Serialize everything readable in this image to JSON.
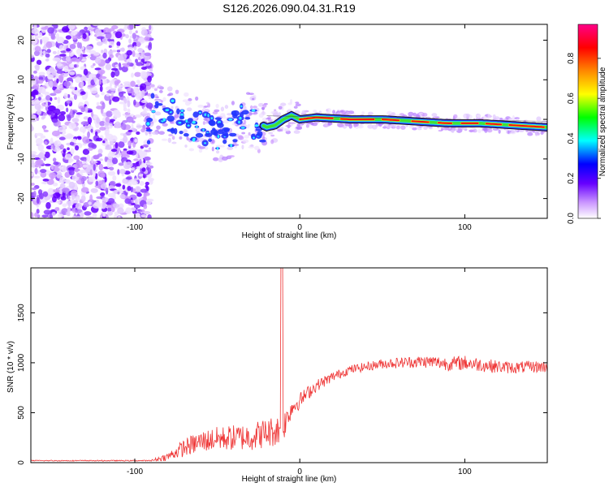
{
  "page_title": "S126.2026.090.04.31.R19",
  "chart_data": [
    {
      "type": "heatmap",
      "title": "S126.2026.090.04.31.R19",
      "xlabel": "Height of straight line (km)",
      "ylabel": "Frequency (Hz)",
      "xlim": [
        -163,
        150
      ],
      "ylim": [
        -25,
        24
      ],
      "xticks": [
        -100,
        0,
        100
      ],
      "yticks": [
        -20,
        -10,
        0,
        10,
        20
      ],
      "xtick_labels": [
        "-100",
        "0",
        "100"
      ],
      "ytick_labels": [
        "-20",
        "-10",
        "0",
        "10",
        "20"
      ],
      "colorbar": {
        "label": "Normalized spectral amplitude",
        "range": [
          0,
          0.97
        ],
        "ticks": [
          0.0,
          0.2,
          0.4,
          0.6,
          0.8
        ],
        "tick_labels": [
          "0.0",
          "0.2",
          "0.4",
          "0.6",
          "0.8"
        ],
        "colors": [
          "#ffffff",
          "#cc99ff",
          "#6600ff",
          "#0000ff",
          "#00ffff",
          "#00ff00",
          "#ffff00",
          "#ff8800",
          "#ff0000",
          "#ff0088"
        ]
      },
      "ridge": {
        "description_points": [
          {
            "x": -90,
            "y": 2.5
          },
          {
            "x": -75,
            "y": 0.5
          },
          {
            "x": -60,
            "y": -2
          },
          {
            "x": -45,
            "y": -4
          },
          {
            "x": -35,
            "y": 0
          },
          {
            "x": -25,
            "y": -1
          },
          {
            "x": -20,
            "y": -2
          },
          {
            "x": -15,
            "y": -1.5
          },
          {
            "x": -10,
            "y": 0
          },
          {
            "x": -5,
            "y": 1
          },
          {
            "x": 0,
            "y": 0
          },
          {
            "x": 10,
            "y": 0.5
          },
          {
            "x": 30,
            "y": 0
          },
          {
            "x": 50,
            "y": 0
          },
          {
            "x": 70,
            "y": -0.5
          },
          {
            "x": 90,
            "y": -1
          },
          {
            "x": 110,
            "y": -1
          },
          {
            "x": 130,
            "y": -1.5
          },
          {
            "x": 150,
            "y": -2
          }
        ]
      }
    },
    {
      "type": "line",
      "xlabel": "Height of straight line (km)",
      "ylabel": "SNR (10 * v/v)",
      "xlim": [
        -163,
        150
      ],
      "ylim": [
        0,
        1950
      ],
      "xticks": [
        -100,
        0,
        100
      ],
      "yticks": [
        0,
        500,
        1000,
        1500
      ],
      "xtick_labels": [
        "-100",
        "0",
        "100"
      ],
      "ytick_labels": [
        "0",
        "500",
        "1000",
        "1500"
      ],
      "color": "#ee3333",
      "trend": {
        "x": [
          -163,
          -90,
          -80,
          -70,
          -60,
          -50,
          -40,
          -30,
          -20,
          -12,
          -11,
          -10,
          -5,
          0,
          5,
          10,
          20,
          30,
          40,
          50,
          60,
          70,
          80,
          90,
          100,
          110,
          120,
          130,
          140,
          150
        ],
        "y": [
          20,
          20,
          60,
          150,
          210,
          240,
          250,
          260,
          300,
          330,
          1950,
          360,
          550,
          620,
          700,
          770,
          860,
          930,
          960,
          990,
          1000,
          1010,
          1010,
          990,
          1000,
          980,
          960,
          950,
          960,
          960
        ],
        "noise": [
          5,
          10,
          40,
          90,
          110,
          120,
          130,
          140,
          150,
          160,
          0,
          150,
          100,
          80,
          70,
          60,
          50,
          45,
          45,
          50,
          55,
          60,
          65,
          70,
          75,
          70,
          65,
          60,
          60,
          60
        ]
      }
    }
  ]
}
